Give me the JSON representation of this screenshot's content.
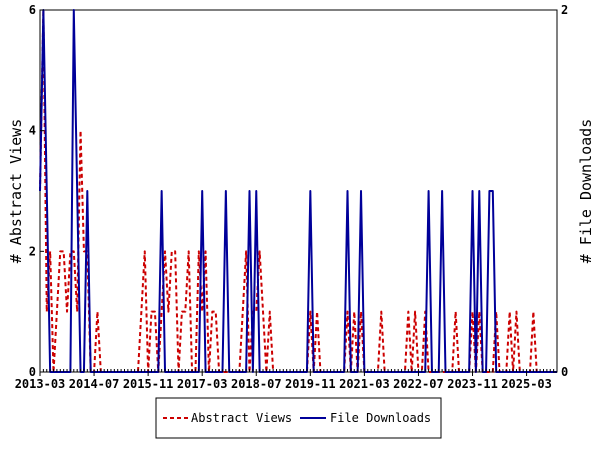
{
  "chart_data": {
    "type": "line",
    "title": "",
    "xlabel": "",
    "ylabel": "# Abstract Views",
    "y2label": "# File Downloads",
    "x_tick_labels": [
      "2013-03",
      "2014-07",
      "2015-11",
      "2017-03",
      "2018-07",
      "2019-11",
      "2021-03",
      "2022-07",
      "2023-11",
      "2025-03"
    ],
    "xlim": [
      "2013-03",
      "2025-12"
    ],
    "ylim": [
      0,
      6
    ],
    "y_ticks": [
      0,
      2,
      4,
      6
    ],
    "y2lim": [
      0,
      2
    ],
    "y2_ticks": [
      0,
      2
    ],
    "grid": false,
    "legend_position": "bottom-center",
    "series": [
      {
        "name": "Abstract Views",
        "axis": "left",
        "color": "#cc0000",
        "style": "dashed",
        "x": [
          "2013-03",
          "2013-04",
          "2013-05",
          "2013-06",
          "2013-07",
          "2013-08",
          "2013-09",
          "2013-10",
          "2013-11",
          "2013-12",
          "2014-01",
          "2014-02",
          "2014-03",
          "2014-04",
          "2014-05",
          "2014-06",
          "2014-07",
          "2014-08",
          "2014-09",
          "2014-10",
          "2014-11",
          "2015-09",
          "2015-10",
          "2015-11",
          "2015-12",
          "2016-01",
          "2016-02",
          "2016-03",
          "2016-04",
          "2016-05",
          "2016-06",
          "2016-07",
          "2016-08",
          "2016-09",
          "2016-10",
          "2016-11",
          "2016-12",
          "2017-01",
          "2017-02",
          "2017-03",
          "2017-04",
          "2017-05",
          "2017-06",
          "2017-07",
          "2017-08",
          "2017-09",
          "2018-02",
          "2018-03",
          "2018-04",
          "2018-05",
          "2018-06",
          "2018-07",
          "2018-08",
          "2018-09",
          "2018-10",
          "2018-11",
          "2018-12",
          "2019-11",
          "2019-12",
          "2020-01",
          "2020-02",
          "2020-10",
          "2020-11",
          "2020-12",
          "2021-01",
          "2021-02",
          "2021-03",
          "2021-08",
          "2021-09",
          "2022-04",
          "2022-05",
          "2022-06",
          "2022-07",
          "2022-08",
          "2022-09",
          "2023-01",
          "2023-06",
          "2023-09",
          "2023-11",
          "2024-01",
          "2024-03",
          "2024-06",
          "2024-08",
          "2024-10",
          "2024-12",
          "2025-03",
          "2025-05"
        ],
        "values": [
          3,
          6,
          1,
          2,
          0,
          1,
          2,
          2,
          1,
          2,
          2,
          1,
          4,
          2,
          2,
          0,
          0,
          1,
          0,
          0,
          0,
          1,
          2,
          0,
          1,
          1,
          0,
          1,
          2,
          1,
          2,
          2,
          0,
          1,
          1,
          2,
          0,
          0,
          2,
          1,
          2,
          0,
          1,
          1,
          0,
          0,
          0,
          1,
          2,
          0,
          1,
          1,
          2,
          1,
          0,
          1,
          0,
          1,
          0,
          1,
          0,
          1,
          0,
          1,
          0,
          1,
          0,
          1,
          0,
          1,
          0,
          1,
          0,
          0,
          1,
          0,
          1,
          0,
          1,
          1,
          0,
          1,
          0,
          1,
          1,
          0,
          1
        ]
      },
      {
        "name": "File Downloads",
        "axis": "right",
        "color": "#000099",
        "style": "solid",
        "x": [
          "2013-03",
          "2013-04",
          "2013-05",
          "2013-06",
          "2013-07",
          "2013-08",
          "2013-09",
          "2013-10",
          "2013-11",
          "2013-12",
          "2014-01",
          "2014-02",
          "2014-03",
          "2014-04",
          "2014-05",
          "2014-06",
          "2014-07",
          "2016-02",
          "2016-03",
          "2016-04",
          "2017-02",
          "2017-03",
          "2017-04",
          "2017-09",
          "2017-10",
          "2017-11",
          "2018-04",
          "2018-05",
          "2018-06",
          "2018-07",
          "2018-08",
          "2019-10",
          "2019-11",
          "2019-12",
          "2020-09",
          "2020-10",
          "2020-11",
          "2021-01",
          "2021-02",
          "2021-03",
          "2022-09",
          "2022-10",
          "2022-11",
          "2023-01",
          "2023-02",
          "2023-03",
          "2023-10",
          "2023-11",
          "2023-12",
          "2024-01",
          "2024-02",
          "2024-03",
          "2024-04",
          "2024-05",
          "2024-06",
          "2024-07"
        ],
        "values": [
          1,
          2,
          1,
          0,
          0,
          0,
          0,
          0,
          0,
          0,
          2,
          1,
          0,
          0,
          1,
          0,
          0,
          0,
          1,
          0,
          0,
          1,
          0,
          0,
          1,
          0,
          0,
          1,
          0,
          1,
          0,
          0,
          1,
          0,
          0,
          1,
          0,
          0,
          1,
          0,
          0,
          1,
          0,
          0,
          1,
          0,
          0,
          1,
          0,
          1,
          0,
          0,
          1,
          1,
          0,
          0
        ]
      }
    ]
  }
}
